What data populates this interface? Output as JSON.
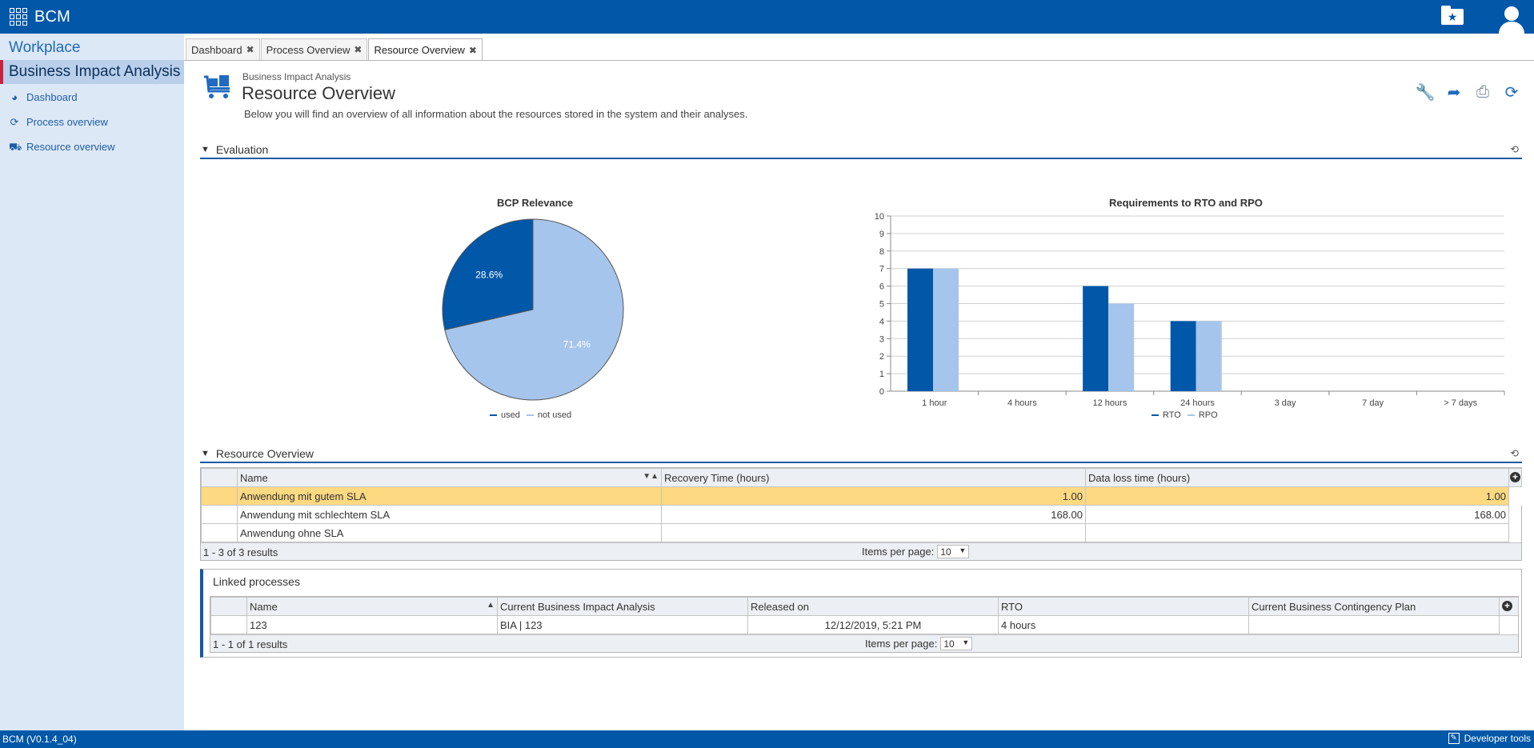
{
  "app": {
    "title": "BCM"
  },
  "sidebar": {
    "workplace": "Workplace",
    "section": "Business Impact Analysis",
    "items": [
      {
        "label": "Dashboard",
        "icon": "pie-chart-icon"
      },
      {
        "label": "Process overview",
        "icon": "process-icon"
      },
      {
        "label": "Resource overview",
        "icon": "resource-icon"
      }
    ]
  },
  "tabs": [
    {
      "label": "Dashboard",
      "active": false
    },
    {
      "label": "Process Overview",
      "active": false
    },
    {
      "label": "Resource Overview",
      "active": true
    }
  ],
  "header": {
    "breadcrumb": "Business Impact Analysis",
    "title": "Resource Overview",
    "description": "Below you will find an overview of all information about the resources stored in the system and their analyses."
  },
  "evaluation": {
    "label": "Evaluation"
  },
  "chart_data": [
    {
      "type": "pie",
      "title": "BCP Relevance",
      "slices": [
        {
          "name": "used",
          "value": 28.6,
          "label": "28.6%",
          "color": "#0157a8"
        },
        {
          "name": "not used",
          "value": 71.4,
          "label": "71.4%",
          "color": "#a6c5ec"
        }
      ],
      "legend_position": "bottom"
    },
    {
      "type": "bar",
      "title": "Requirements to RTO and RPO",
      "categories": [
        "1 hour",
        "4 hours",
        "12 hours",
        "24 hours",
        "3 day",
        "7 day",
        "> 7 days"
      ],
      "series": [
        {
          "name": "RTO",
          "values": [
            7,
            0,
            6,
            4,
            0,
            0,
            0
          ],
          "color": "#0157a8"
        },
        {
          "name": "RPO",
          "values": [
            7,
            0,
            5,
            4,
            0,
            0,
            0
          ],
          "color": "#a6c5ec"
        }
      ],
      "ylim": [
        0,
        10
      ],
      "yticks": [
        "0",
        "1",
        "2",
        "3",
        "4",
        "5",
        "6",
        "7",
        "8",
        "9",
        "10"
      ],
      "grid": true,
      "legend_position": "bottom"
    }
  ],
  "resource_overview": {
    "label": "Resource Overview",
    "columns": [
      "Name",
      "Recovery Time (hours)",
      "Data loss time (hours)"
    ],
    "rows": [
      {
        "name": "Anwendung mit gutem SLA",
        "rto": "1.00",
        "rpo": "1.00",
        "selected": true
      },
      {
        "name": "Anwendung mit schlechtem SLA",
        "rto": "168.00",
        "rpo": "168.00",
        "selected": false
      },
      {
        "name": "Anwendung ohne SLA",
        "rto": "",
        "rpo": "",
        "selected": false
      }
    ],
    "result_count": "1 - 3 of 3 results",
    "items_per_page_label": "Items per page:",
    "items_per_page": "10"
  },
  "linked_processes": {
    "label": "Linked processes",
    "columns": [
      "Name",
      "Current Business Impact Analysis",
      "Released on",
      "RTO",
      "Current Business Contingency Plan"
    ],
    "rows": [
      {
        "name": "123",
        "bia": "BIA | 123",
        "released": "12/12/2019, 5:21 PM",
        "rto": "4 hours",
        "bcp": ""
      }
    ],
    "result_count": "1 - 1 of 1 results",
    "items_per_page_label": "Items per page:",
    "items_per_page": "10"
  },
  "footer": {
    "version": "BCM (V0.1.4_04)",
    "dev_tools": "Developer tools"
  }
}
